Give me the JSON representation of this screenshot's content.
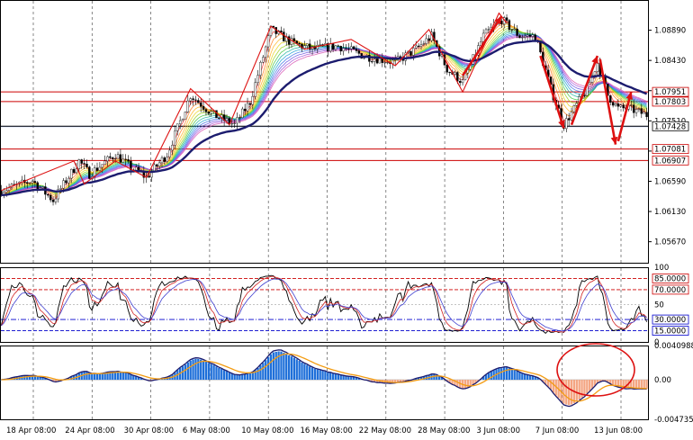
{
  "chart_data": [
    {
      "type": "candlestick",
      "panel": "price",
      "title": "",
      "ylim": [
        1.0535,
        1.0935
      ],
      "y_ticks": [
        1.0567,
        1.0613,
        1.0659,
        1.0705,
        1.0751,
        1.0797,
        1.0843,
        1.0889
      ],
      "y_tick_labels": [
        "1.05670",
        "1.06130",
        "1.06590",
        "1.07050",
        "1.07510",
        "1.07970",
        "1.08430",
        "1.08890"
      ],
      "price_levels": [
        {
          "value": 1.07951,
          "label": "1.07951",
          "color": "#cc0000"
        },
        {
          "value": 1.07803,
          "label": "1.07803",
          "color": "#cc0000"
        },
        {
          "value": 1.07428,
          "label": "1.07428",
          "color": "#000000"
        },
        {
          "value": 1.07081,
          "label": "1.07081",
          "color": "#cc0000"
        },
        {
          "value": 1.06907,
          "label": "1.06907",
          "color": "#cc0000"
        }
      ],
      "trend_path": [
        [
          0,
          1.0645
        ],
        [
          28,
          1.069
        ],
        [
          32,
          1.0655
        ],
        [
          44,
          1.069
        ],
        [
          56,
          1.0665
        ],
        [
          73,
          1.08
        ],
        [
          88,
          1.0745
        ],
        [
          104,
          1.0895
        ],
        [
          117,
          1.086
        ],
        [
          135,
          1.0875
        ],
        [
          152,
          1.0835
        ],
        [
          165,
          1.089
        ],
        [
          178,
          1.0795
        ],
        [
          192,
          1.0915
        ],
        [
          195,
          1.09
        ]
      ],
      "arrows": [
        {
          "from": [
            178,
            1.082
          ],
          "to": [
            193,
            1.091
          ]
        },
        {
          "from": [
            208,
            1.085
          ],
          "to": [
            217,
            1.074
          ]
        },
        {
          "from": [
            220,
            1.0745
          ],
          "to": [
            230,
            1.085
          ]
        },
        {
          "from": [
            231,
            1.0845
          ],
          "to": [
            237,
            1.0715
          ]
        },
        {
          "from": [
            238,
            1.072
          ],
          "to": [
            243,
            1.0795
          ]
        }
      ],
      "highlight_line": [
        1.0742
      ]
    },
    {
      "type": "line",
      "panel": "oscillator",
      "ylim": [
        0,
        100
      ],
      "y_ticks": [
        100,
        50,
        0
      ],
      "levels": [
        {
          "value": 85,
          "label": "85.0000",
          "color": "#cc0000"
        },
        {
          "value": 70,
          "label": "70.0000",
          "color": "#cc0000"
        },
        {
          "value": 30,
          "label": "30.0000",
          "color": "#0000cc"
        },
        {
          "value": 15,
          "label": "15.0000",
          "color": "#0000cc"
        }
      ]
    },
    {
      "type": "bar",
      "panel": "macd",
      "ylim": [
        -0.0047358,
        0.0040988
      ],
      "y_ticks": [
        0.0040988,
        0.0,
        -0.0047358
      ],
      "y_tick_labels": [
        "0.0040988",
        "0.00",
        "-0.0047358"
      ]
    }
  ],
  "x_axis": {
    "labels": [
      "18 Apr 08:00",
      "24 Apr 08:00",
      "30 Apr 08:00",
      "6 May 08:00",
      "10 May 08:00",
      "16 May 08:00",
      "22 May 08:00",
      "28 May 08:00",
      "3 Jun 08:00",
      "7 Jun 08:00",
      "13 Jun 08:00"
    ]
  },
  "colors": {
    "red": "#dd1111",
    "navy": "#1c1c6e",
    "up": "#1e6fd9",
    "down": "#f4a582",
    "orange": "#f39c12"
  }
}
